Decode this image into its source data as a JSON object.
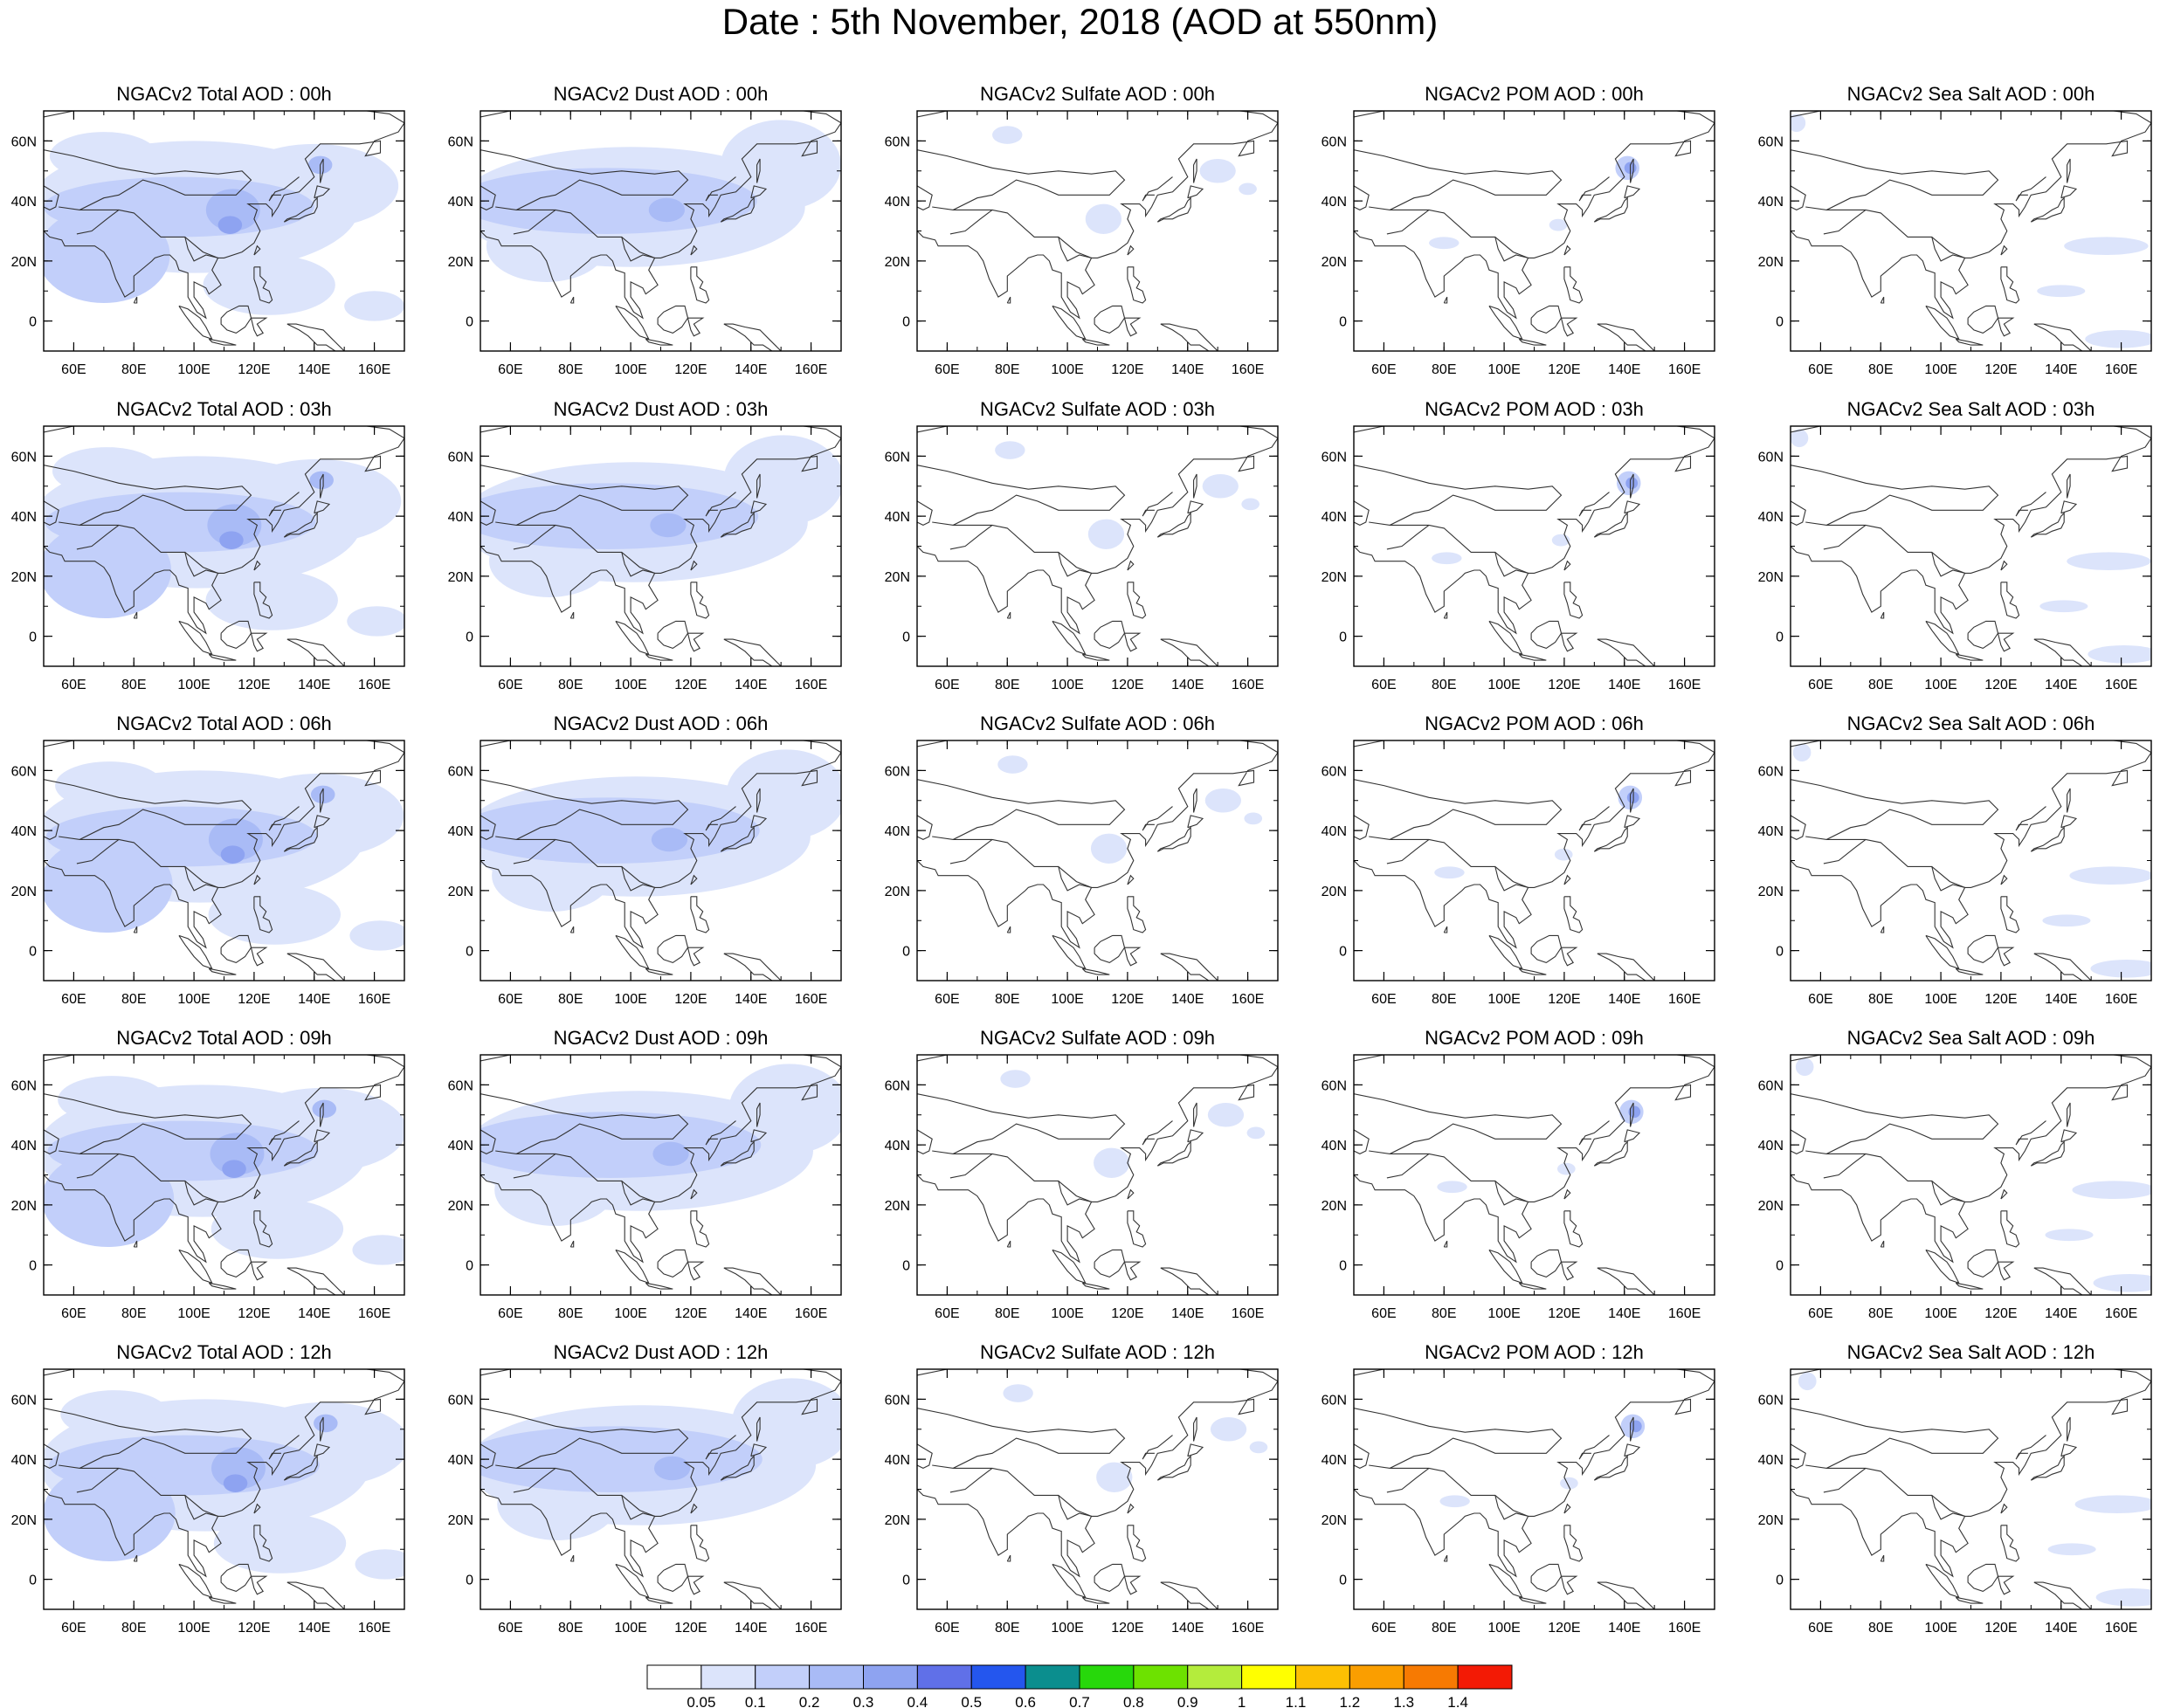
{
  "title": "Date : 5th November, 2018 (AOD at 550nm)",
  "colors": {
    "land_outline": "#333333",
    "frame": "#000000"
  },
  "chart_data": {
    "type": "heatmap",
    "grid": {
      "rows": 5,
      "cols": 5
    },
    "axes": {
      "xlim": [
        50,
        170
      ],
      "ylim": [
        -10,
        70
      ],
      "x_ticks": [
        60,
        80,
        100,
        120,
        140,
        160
      ],
      "x_tick_labels": [
        "60E",
        "80E",
        "100E",
        "120E",
        "140E",
        "160E"
      ],
      "y_ticks": [
        0,
        20,
        40,
        60
      ],
      "y_tick_labels": [
        "0",
        "20N",
        "40N",
        "60N"
      ]
    },
    "panel_titles": [
      [
        "NGACv2 Total AOD : 00h",
        "NGACv2 Dust AOD : 00h",
        "NGACv2 Sulfate AOD : 00h",
        "NGACv2 POM AOD : 00h",
        "NGACv2 Sea Salt AOD : 00h"
      ],
      [
        "NGACv2 Total AOD : 03h",
        "NGACv2 Dust AOD : 03h",
        "NGACv2 Sulfate AOD : 03h",
        "NGACv2 POM AOD : 03h",
        "NGACv2 Sea Salt AOD : 03h"
      ],
      [
        "NGACv2 Total AOD : 06h",
        "NGACv2 Dust AOD : 06h",
        "NGACv2 Sulfate AOD : 06h",
        "NGACv2 POM AOD : 06h",
        "NGACv2 Sea Salt AOD : 06h"
      ],
      [
        "NGACv2 Total AOD : 09h",
        "NGACv2 Dust AOD : 09h",
        "NGACv2 Sulfate AOD : 09h",
        "NGACv2 POM AOD : 09h",
        "NGACv2 Sea Salt  AOD : 09h"
      ],
      [
        "NGACv2 Total AOD  : 12h",
        "NGACv2 Dust AOD : 12h",
        "NGACv2 Sulfate AOD : 12h",
        "NGACv2 POM  AOD : 12h",
        "NGACv2 Sea Salt  AOD : 12h"
      ]
    ],
    "colorbar": {
      "colors": [
        "#ffffff",
        "#dce4fb",
        "#c2cffa",
        "#a9bbf6",
        "#8ea3f1",
        "#6070e8",
        "#2456ee",
        "#0b8e8e",
        "#27d80b",
        "#6de200",
        "#b4ec3c",
        "#ffff00",
        "#fcc003",
        "#fa9e00",
        "#f77a02",
        "#f31a05"
      ],
      "labels": [
        "0.05",
        "0.1",
        "0.2",
        "0.3",
        "0.4",
        "0.5",
        "0.6",
        "0.7",
        "0.8",
        "0.9",
        "1",
        "1.1",
        "1.2",
        "1.3",
        "1.4"
      ]
    },
    "species": [
      {
        "id": "total",
        "blobs": [
          {
            "lon": 95,
            "lat": 38,
            "rx": 45,
            "ry": 10,
            "level": 2
          },
          {
            "lon": 100,
            "lat": 38,
            "rx": 55,
            "ry": 22,
            "level": 1
          },
          {
            "lon": 70,
            "lat": 22,
            "rx": 22,
            "ry": 16,
            "level": 2
          },
          {
            "lon": 113,
            "lat": 37,
            "rx": 9,
            "ry": 7,
            "level": 3
          },
          {
            "lon": 112,
            "lat": 32,
            "rx": 4,
            "ry": 3,
            "level": 4
          },
          {
            "lon": 140,
            "lat": 45,
            "rx": 28,
            "ry": 14,
            "level": 1
          },
          {
            "lon": 142,
            "lat": 52,
            "rx": 4,
            "ry": 3,
            "level": 3
          },
          {
            "lon": 70,
            "lat": 55,
            "rx": 18,
            "ry": 8,
            "level": 1
          },
          {
            "lon": 125,
            "lat": 12,
            "rx": 22,
            "ry": 10,
            "level": 1
          },
          {
            "lon": 160,
            "lat": 5,
            "rx": 10,
            "ry": 5,
            "level": 1
          }
        ]
      },
      {
        "id": "dust",
        "blobs": [
          {
            "lon": 92,
            "lat": 40,
            "rx": 50,
            "ry": 11,
            "level": 2
          },
          {
            "lon": 100,
            "lat": 38,
            "rx": 58,
            "ry": 20,
            "level": 1
          },
          {
            "lon": 72,
            "lat": 25,
            "rx": 20,
            "ry": 12,
            "level": 1
          },
          {
            "lon": 150,
            "lat": 52,
            "rx": 20,
            "ry": 15,
            "level": 1
          },
          {
            "lon": 112,
            "lat": 37,
            "rx": 6,
            "ry": 4,
            "level": 3
          }
        ]
      },
      {
        "id": "sulfate",
        "blobs": [
          {
            "lon": 112,
            "lat": 34,
            "rx": 6,
            "ry": 5,
            "level": 1
          },
          {
            "lon": 80,
            "lat": 62,
            "rx": 5,
            "ry": 3,
            "level": 1
          },
          {
            "lon": 150,
            "lat": 50,
            "rx": 6,
            "ry": 4,
            "level": 1
          },
          {
            "lon": 160,
            "lat": 44,
            "rx": 3,
            "ry": 2,
            "level": 1
          }
        ]
      },
      {
        "id": "pom",
        "blobs": [
          {
            "lon": 141,
            "lat": 51,
            "rx": 4,
            "ry": 4,
            "level": 2
          },
          {
            "lon": 142,
            "lat": 51,
            "rx": 2,
            "ry": 2,
            "level": 4
          },
          {
            "lon": 118,
            "lat": 32,
            "rx": 3,
            "ry": 2,
            "level": 1
          },
          {
            "lon": 80,
            "lat": 26,
            "rx": 5,
            "ry": 2,
            "level": 1
          }
        ]
      },
      {
        "id": "seasalt",
        "blobs": [
          {
            "lon": 155,
            "lat": 25,
            "rx": 14,
            "ry": 3,
            "level": 1
          },
          {
            "lon": 160,
            "lat": -6,
            "rx": 12,
            "ry": 3,
            "level": 1
          },
          {
            "lon": 52,
            "lat": 66,
            "rx": 3,
            "ry": 3,
            "level": 1
          },
          {
            "lon": 140,
            "lat": 10,
            "rx": 8,
            "ry": 2,
            "level": 1
          }
        ]
      }
    ]
  }
}
